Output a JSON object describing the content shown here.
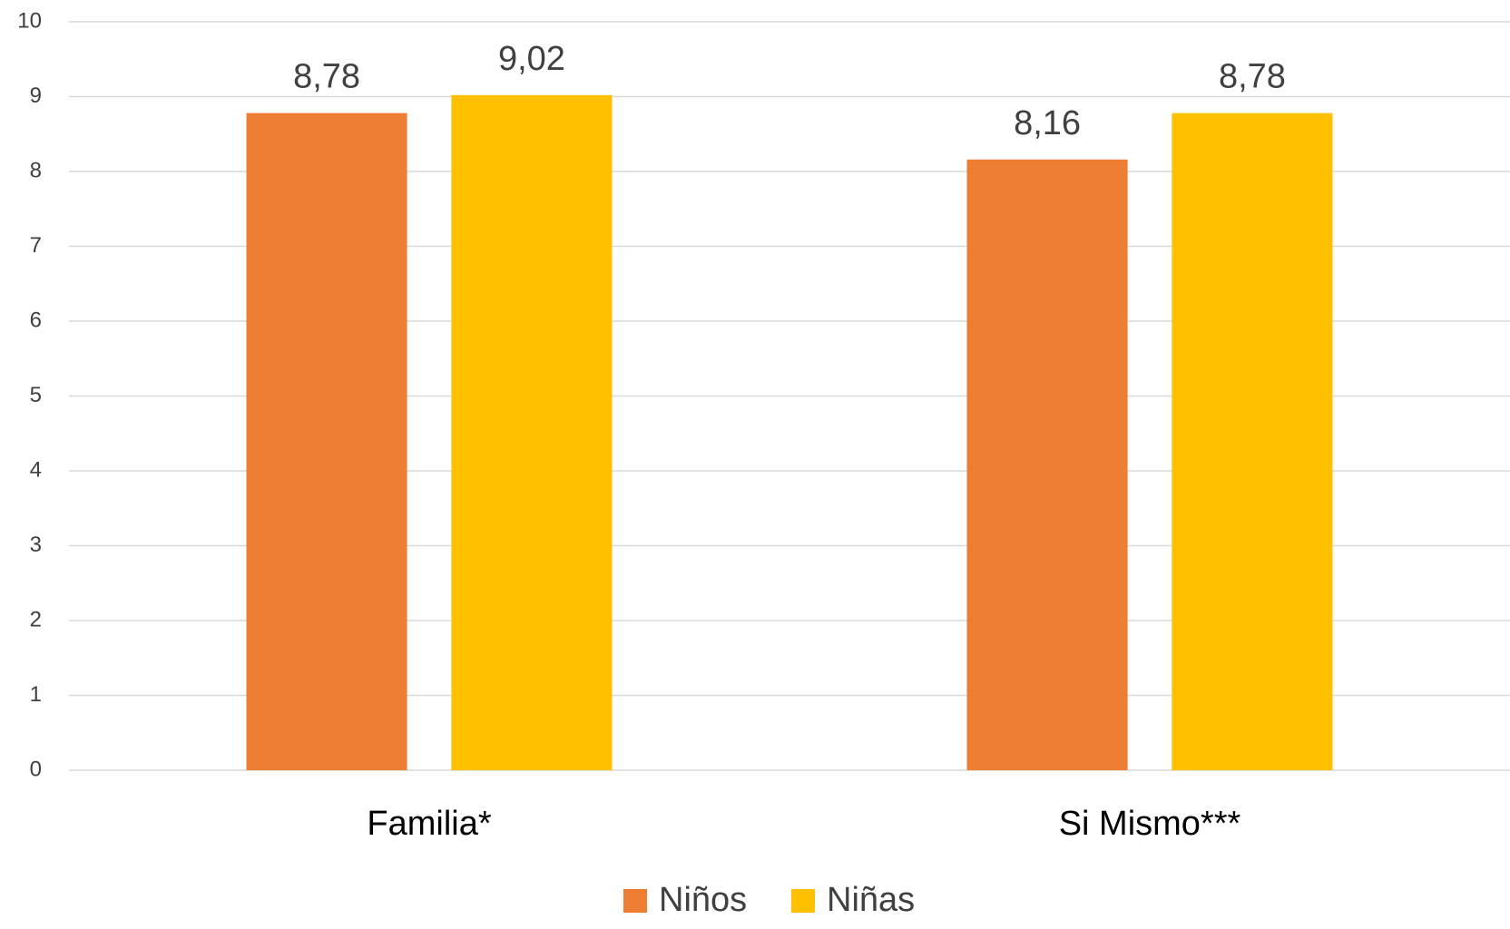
{
  "chart_data": {
    "type": "bar",
    "categories": [
      "Familia*",
      "Si Mismo***"
    ],
    "series": [
      {
        "name": "Niños",
        "color": "#ed7d31",
        "values": [
          8.78,
          8.16
        ],
        "value_labels": [
          "8,78",
          "8,16"
        ]
      },
      {
        "name": "Niñas",
        "color": "#ffc000",
        "values": [
          9.02,
          8.78
        ],
        "value_labels": [
          "9,02",
          "8,78"
        ]
      }
    ],
    "ylim": [
      0,
      10
    ],
    "yticks": [
      0,
      1,
      2,
      3,
      4,
      5,
      6,
      7,
      8,
      9,
      10
    ],
    "grid": true,
    "legend": "bottom"
  }
}
